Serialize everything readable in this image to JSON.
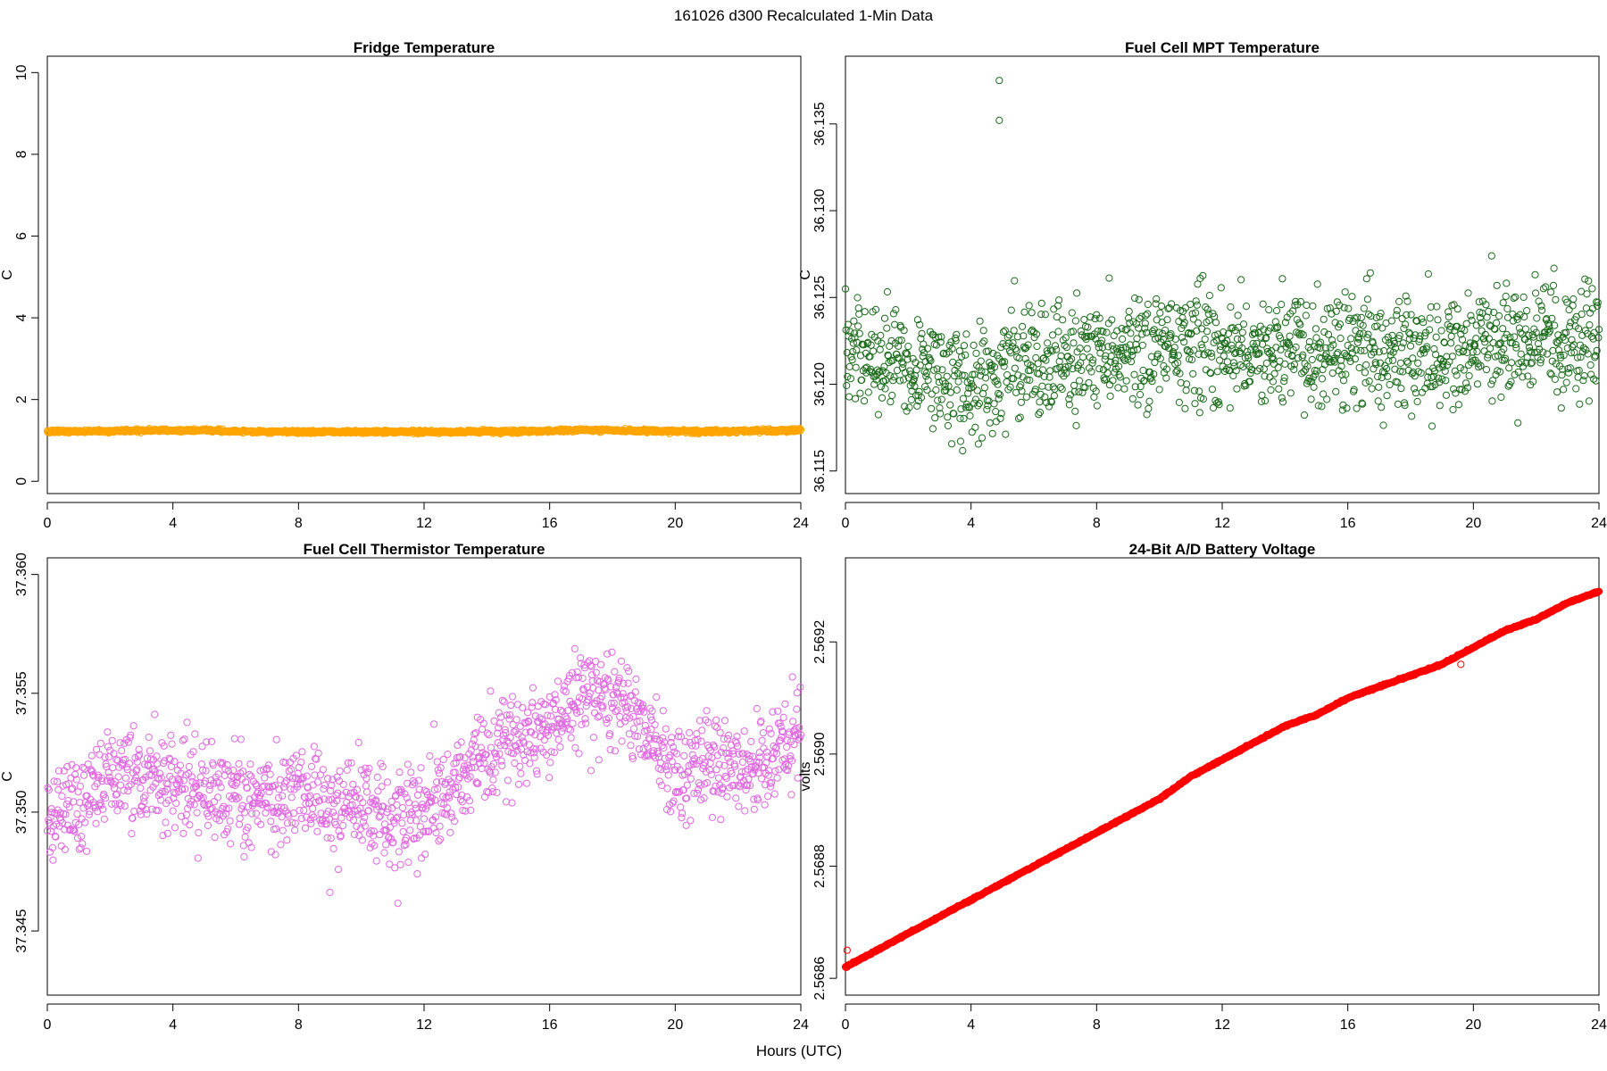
{
  "suptitle": "161026   d300   Recalculated 1-Min Data",
  "shared_xlabel": "Hours (UTC)",
  "chart_data": [
    {
      "id": "fridge",
      "type": "scatter",
      "title": "Fridge Temperature",
      "xlabel": "",
      "ylabel": "C",
      "xlim": [
        0,
        24
      ],
      "ylim": [
        -0.3,
        10.4
      ],
      "xticks": [
        0,
        4,
        8,
        12,
        16,
        20,
        24
      ],
      "yticks": [
        0,
        2,
        4,
        6,
        8,
        10
      ],
      "yticklabels": [
        "0",
        "2",
        "4",
        "6",
        "8",
        "10"
      ],
      "color": "#FFA500",
      "marker": "open-circle",
      "series": [
        {
          "name": "Fridge Temperature",
          "x": [
            0,
            1,
            2,
            3,
            4,
            5,
            6,
            7,
            8,
            9,
            10,
            11,
            12,
            13,
            14,
            15,
            16,
            17,
            18,
            19,
            20,
            21,
            22,
            23,
            24
          ],
          "y": [
            1.22,
            1.22,
            1.23,
            1.24,
            1.24,
            1.25,
            1.22,
            1.21,
            1.21,
            1.21,
            1.21,
            1.21,
            1.21,
            1.21,
            1.22,
            1.22,
            1.23,
            1.26,
            1.24,
            1.23,
            1.22,
            1.22,
            1.23,
            1.24,
            1.25
          ],
          "spread": 0.04,
          "density": 60
        }
      ]
    },
    {
      "id": "mpt",
      "type": "scatter",
      "title": "Fuel Cell MPT Temperature",
      "xlabel": "",
      "ylabel": "C",
      "xlim": [
        0,
        24
      ],
      "ylim": [
        36.1137,
        36.1389
      ],
      "xticks": [
        0,
        4,
        8,
        12,
        16,
        20,
        24
      ],
      "yticks": [
        36.115,
        36.12,
        36.125,
        36.13,
        36.135
      ],
      "yticklabels": [
        "36.115",
        "36.120",
        "36.125",
        "36.130",
        "36.135"
      ],
      "color": "#1A6B1A",
      "marker": "open-circle",
      "series": [
        {
          "name": "Fuel Cell MPT Temperature",
          "x": [
            0,
            1,
            2,
            3,
            4,
            5,
            6,
            7,
            8,
            9,
            10,
            11,
            12,
            13,
            14,
            15,
            16,
            17,
            18,
            19,
            20,
            21,
            22,
            23,
            24
          ],
          "y": [
            36.1215,
            36.1218,
            36.121,
            36.1205,
            36.12,
            36.1208,
            36.1212,
            36.1215,
            36.1215,
            36.1218,
            36.122,
            36.1225,
            36.1222,
            36.1222,
            36.122,
            36.1218,
            36.122,
            36.122,
            36.1222,
            36.1218,
            36.1222,
            36.122,
            36.1222,
            36.1222,
            36.122
          ],
          "spread": 0.0035,
          "density": 60,
          "outliers": [
            [
              4.9,
              36.1375
            ],
            [
              4.9,
              36.1352
            ]
          ]
        }
      ]
    },
    {
      "id": "thermistor",
      "type": "scatter",
      "title": "Fuel Cell Thermistor Temperature",
      "xlabel": "",
      "ylabel": "C",
      "xlim": [
        0,
        24
      ],
      "ylim": [
        37.3423,
        37.3607
      ],
      "xticks": [
        0,
        4,
        8,
        12,
        16,
        20,
        24
      ],
      "yticks": [
        37.345,
        37.35,
        37.355,
        37.36
      ],
      "yticklabels": [
        "37.345",
        "37.350",
        "37.355",
        "37.360"
      ],
      "color": "#E066E0",
      "marker": "open-circle",
      "series": [
        {
          "name": "Fuel Cell Thermistor Temperature",
          "x": [
            0,
            1,
            2,
            3,
            4,
            5,
            6,
            7,
            8,
            9,
            10,
            11,
            12,
            13,
            14,
            15,
            16,
            17,
            18,
            19,
            20,
            21,
            22,
            23,
            24
          ],
          "y": [
            37.3495,
            37.3505,
            37.3518,
            37.3515,
            37.351,
            37.351,
            37.3505,
            37.3505,
            37.351,
            37.35,
            37.3505,
            37.3495,
            37.35,
            37.351,
            37.3525,
            37.353,
            37.3535,
            37.355,
            37.3545,
            37.354,
            37.3515,
            37.352,
            37.352,
            37.352,
            37.3535
          ],
          "spread": 0.0022,
          "density": 60
        }
      ]
    },
    {
      "id": "battery",
      "type": "scatter",
      "title": "24-Bit A/D Battery Voltage",
      "xlabel": "",
      "ylabel": "volts",
      "xlim": [
        0,
        24
      ],
      "ylim": [
        2.56857,
        2.56935
      ],
      "xticks": [
        0,
        4,
        8,
        12,
        16,
        20,
        24
      ],
      "yticks": [
        2.5686,
        2.5688,
        2.569,
        2.5692
      ],
      "yticklabels": [
        "2.5686",
        "2.5688",
        "2.5690",
        "2.5692"
      ],
      "color": "#FF0000",
      "marker": "open-circle",
      "series": [
        {
          "name": "24-Bit A/D Battery Voltage",
          "x": [
            0,
            1,
            2,
            3,
            4,
            5,
            6,
            7,
            8,
            9,
            10,
            11,
            12,
            13,
            14,
            15,
            16,
            17,
            18,
            19,
            20,
            21,
            22,
            23,
            24
          ],
          "y": [
            2.56862,
            2.56865,
            2.56868,
            2.56871,
            2.56874,
            2.56877,
            2.5688,
            2.56883,
            2.56886,
            2.56889,
            2.56892,
            2.56896,
            2.56899,
            2.56902,
            2.56905,
            2.56907,
            2.5691,
            2.56912,
            2.56914,
            2.56916,
            2.56919,
            2.56922,
            2.56924,
            2.56927,
            2.56929
          ],
          "spread": 1.5e-06,
          "density": 60,
          "outliers": [
            [
              0.05,
              2.56865
            ],
            [
              19.6,
              2.56916
            ]
          ]
        }
      ]
    }
  ]
}
